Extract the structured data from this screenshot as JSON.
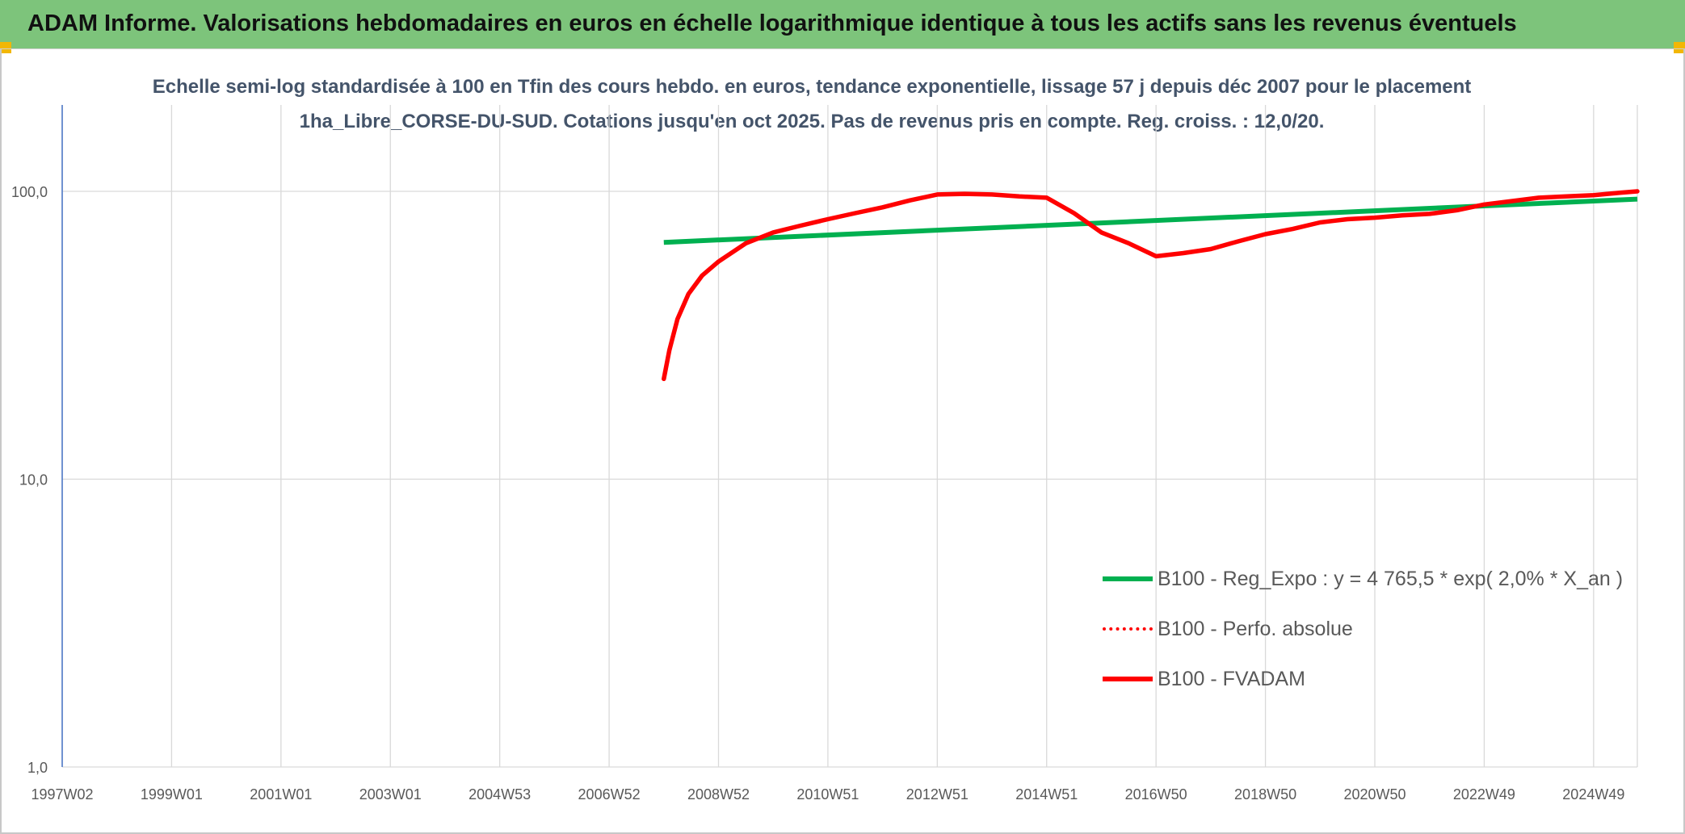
{
  "header": {
    "title": "ADAM Informe. Valorisations hebdomadaires en euros en échelle logarithmique identique à tous les actifs sans les revenus éventuels"
  },
  "colors": {
    "banner": "#7dc47b",
    "corner": "#f2b705",
    "regression": "#00b050",
    "fvadam": "#ff0000",
    "perfo": "#ff0000",
    "subtitle_text": "#44546a"
  },
  "chart_data": {
    "type": "line",
    "title": "Echelle semi-log standardisée à 100 en Tfin des cours hebdo. en euros, tendance exponentielle, lissage 57 j depuis déc 2007 pour le placement 1ha_Libre_CORSE-DU-SUD. Cotations jusqu'en oct 2025. Pas de revenus pris en compte. Reg. croiss. : 12,0/20.",
    "y_scale": "log",
    "ylim": [
      1,
      100
    ],
    "xlim": [
      1997.0,
      2025.8
    ],
    "x_tick_labels": [
      "1997W02",
      "1999W01",
      "2001W01",
      "2003W01",
      "2004W53",
      "2006W52",
      "2008W52",
      "2010W51",
      "2012W51",
      "2014W51",
      "2016W50",
      "2018W50",
      "2020W50",
      "2022W49",
      "2024W49"
    ],
    "x_tick_positions": [
      1997.0,
      1999.0,
      2001.0,
      2003.0,
      2005.0,
      2007.0,
      2009.0,
      2011.0,
      2013.0,
      2015.0,
      2017.0,
      2019.0,
      2021.0,
      2023.0,
      2025.0
    ],
    "y_ticks": [
      1,
      10,
      100
    ],
    "y_tick_labels": [
      "1,0",
      "10,0",
      "100,0"
    ],
    "grid": true,
    "legend_position": "bottom-right",
    "series": [
      {
        "name": "B100 - Reg_Expo : y = 4 765,5 * exp( 2,0% *  X_an )",
        "style": "solid-green",
        "x": [
          2008.0,
          2025.8
        ],
        "y": [
          66.5,
          94.0
        ]
      },
      {
        "name": "B100 - Perfo. absolue",
        "style": "dotted-red",
        "x": [],
        "y": []
      },
      {
        "name": "B100 - FVADAM",
        "style": "solid-red",
        "x": [
          2008.0,
          2008.1,
          2008.25,
          2008.45,
          2008.7,
          2009.0,
          2009.5,
          2010.0,
          2010.5,
          2011.0,
          2011.5,
          2012.0,
          2012.5,
          2013.0,
          2013.5,
          2014.0,
          2014.5,
          2015.0,
          2015.5,
          2016.0,
          2016.5,
          2017.0,
          2017.5,
          2018.0,
          2018.5,
          2019.0,
          2019.5,
          2020.0,
          2020.5,
          2021.0,
          2021.5,
          2022.0,
          2022.5,
          2023.0,
          2023.5,
          2024.0,
          2024.5,
          2025.0,
          2025.5,
          2025.8
        ],
        "y": [
          22.3,
          28.0,
          36.0,
          44.0,
          51.0,
          57.0,
          66.0,
          72.0,
          76.0,
          80.0,
          84.0,
          88.0,
          93.0,
          97.5,
          98.0,
          97.5,
          96.0,
          95.0,
          84.0,
          72.0,
          66.0,
          59.5,
          61.0,
          63.0,
          67.0,
          71.0,
          74.0,
          78.0,
          80.0,
          81.0,
          82.5,
          83.5,
          86.0,
          90.0,
          92.5,
          95.0,
          96.0,
          97.0,
          99.0,
          100.0
        ]
      }
    ]
  }
}
